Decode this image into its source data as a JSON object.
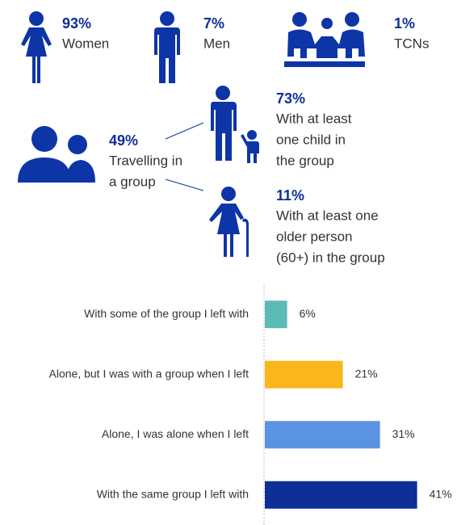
{
  "stats": [
    {
      "percent": "93%",
      "lines": [
        "Women"
      ]
    },
    {
      "percent": "7%",
      "lines": [
        "Men"
      ]
    },
    {
      "percent": "1%",
      "lines": [
        "TCNs"
      ]
    },
    {
      "percent": "49%",
      "lines": [
        "Travelling in",
        "a group"
      ]
    },
    {
      "percent": "73%",
      "lines": [
        "With at least",
        "one child in",
        "the group"
      ]
    },
    {
      "percent": "11%",
      "lines": [
        "With at least one",
        "older person",
        "(60+) in the group"
      ]
    }
  ],
  "chart_data": {
    "type": "hbar",
    "categories": [
      "With some of the group I left with",
      "Alone, but I was with a group when I left",
      "Alone, I was alone when I left",
      "With the same group I left with"
    ],
    "values": [
      6,
      21,
      31,
      41
    ],
    "value_labels": [
      "6%",
      "21%",
      "31%",
      "41%"
    ],
    "colors": [
      "#5bbab5",
      "#fbb61b",
      "#5b93e3",
      "#0e2f96"
    ],
    "xlim": [
      0,
      50
    ]
  }
}
